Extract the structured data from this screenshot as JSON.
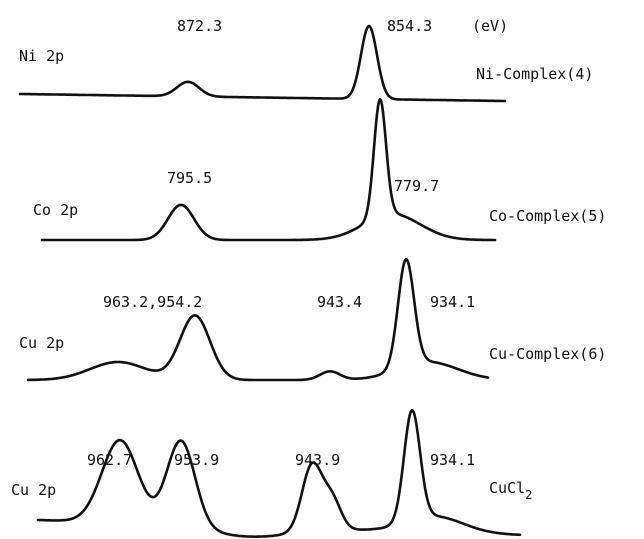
{
  "chart_data": {
    "type": "line",
    "title": "",
    "xlabel": "",
    "ylabel": "",
    "unit": "(eV)",
    "panels": [
      {
        "orbital": "Ni 2p",
        "sample": "Ni-Complex(4)",
        "peaks": [
          {
            "label": "872.3",
            "relative_height": 0.2
          },
          {
            "label": "854.3",
            "relative_height": 1.0
          }
        ]
      },
      {
        "orbital": "Co 2p",
        "sample": "Co-Complex(5)",
        "peaks": [
          {
            "label": "795.5",
            "relative_height": 0.3
          },
          {
            "label": "779.7",
            "relative_height": 1.0
          }
        ]
      },
      {
        "orbital": "Cu 2p",
        "sample": "Cu-Complex(6)",
        "peaks": [
          {
            "label": "963.2,954.2",
            "relative_height": 0.6
          },
          {
            "label": "943.4",
            "relative_height": 0.08
          },
          {
            "label": "934.1",
            "relative_height": 1.0
          }
        ]
      },
      {
        "orbital": "Cu 2p",
        "sample": "CuCl",
        "sample_subscript": "2",
        "peaks": [
          {
            "label": "962.7",
            "relative_height": 0.75
          },
          {
            "label": "953.9",
            "relative_height": 0.78
          },
          {
            "label": "943.9",
            "relative_height": 0.6
          },
          {
            "label": "934.1",
            "relative_height": 1.0
          }
        ]
      }
    ]
  }
}
